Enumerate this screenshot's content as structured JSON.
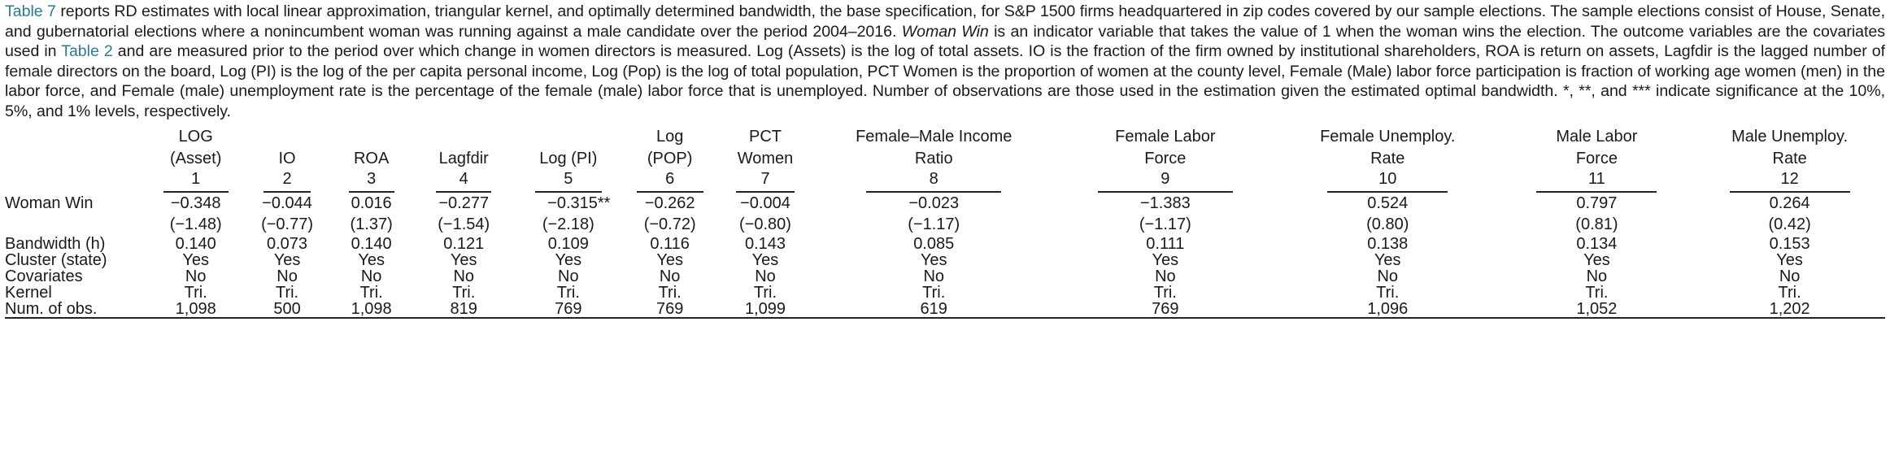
{
  "caption": {
    "link_table7": "Table 7",
    "part1": " reports RD estimates with local linear approximation, triangular kernel, and optimally determined bandwidth, the base specification, for S&P 1500 firms headquartered in zip codes covered by our sample elections. The sample elections consist of House, Senate, and gubernatorial elections where a nonincumbent woman was running against a male candidate over the period 2004–2016. ",
    "italic_var": "Woman Win",
    "part2": " is an indicator variable that takes the value of 1 when the woman wins the election. The outcome variables are the covariates used in ",
    "link_table2": "Table 2",
    "part3": " and are measured prior to the period over which change in women directors is measured. Log (Assets) is the log of total assets. IO is the fraction of the firm owned by institutional shareholders, ROA is return on assets, Lagfdir is the lagged number of female directors on the board, Log (PI) is the log of the per capita personal income, Log (Pop) is the log of total population, PCT Women is the proportion of women at the county level, Female (Male) labor force participation is fraction of working age women (men) in the labor force, and Female (male) unemployment rate is the percentage of the female (male) labor force that is unemployed. Number of observations are those used in the estimation given the estimated optimal bandwidth. *, **, and *** indicate significance at the 10%, 5%, and 1% levels, respectively."
  },
  "table": {
    "columns": [
      {
        "line1": "LOG",
        "line2": "(Asset)",
        "num": "1"
      },
      {
        "line1": "",
        "line2": "IO",
        "num": "2"
      },
      {
        "line1": "",
        "line2": "ROA",
        "num": "3"
      },
      {
        "line1": "",
        "line2": "Lagfdir",
        "num": "4"
      },
      {
        "line1": "",
        "line2": "Log (PI)",
        "num": "5"
      },
      {
        "line1": "Log",
        "line2": "(POP)",
        "num": "6"
      },
      {
        "line1": "PCT",
        "line2": "Women",
        "num": "7"
      },
      {
        "line1": "Female–Male Income",
        "line2": "Ratio",
        "num": "8"
      },
      {
        "line1": "Female Labor",
        "line2": "Force",
        "num": "9"
      },
      {
        "line1": "Female Unemploy.",
        "line2": "Rate",
        "num": "10"
      },
      {
        "line1": "Male Labor",
        "line2": "Force",
        "num": "11"
      },
      {
        "line1": "Male Unemploy.",
        "line2": "Rate",
        "num": "12"
      }
    ],
    "coef_row": {
      "label": "Woman Win",
      "values": [
        "−0.348",
        "−0.044",
        "0.016",
        "−0.277",
        "−0.315**",
        "−0.262",
        "−0.004",
        "−0.023",
        "−1.383",
        "0.524",
        "0.797",
        "0.264"
      ],
      "tstats": [
        "(−1.48)",
        "(−0.77)",
        "(1.37)",
        "(−1.54)",
        "(−2.18)",
        "(−0.72)",
        "(−0.80)",
        "(−1.17)",
        "(−1.17)",
        "(0.80)",
        "(0.81)",
        "(0.42)"
      ]
    },
    "stat_rows": [
      {
        "label": "Bandwidth (h)",
        "values": [
          "0.140",
          "0.073",
          "0.140",
          "0.121",
          "0.109",
          "0.116",
          "0.143",
          "0.085",
          "0.111",
          "0.138",
          "0.134",
          "0.153"
        ]
      },
      {
        "label": "Cluster (state)",
        "values": [
          "Yes",
          "Yes",
          "Yes",
          "Yes",
          "Yes",
          "Yes",
          "Yes",
          "Yes",
          "Yes",
          "Yes",
          "Yes",
          "Yes"
        ]
      },
      {
        "label": "Covariates",
        "values": [
          "No",
          "No",
          "No",
          "No",
          "No",
          "No",
          "No",
          "No",
          "No",
          "No",
          "No",
          "No"
        ]
      },
      {
        "label": "Kernel",
        "values": [
          "Tri.",
          "Tri.",
          "Tri.",
          "Tri.",
          "Tri.",
          "Tri.",
          "Tri.",
          "Tri.",
          "Tri.",
          "Tri.",
          "Tri.",
          "Tri."
        ]
      },
      {
        "label": "Num. of obs.",
        "values": [
          "1,098",
          "500",
          "1,098",
          "819",
          "769",
          "769",
          "1,099",
          "619",
          "769",
          "1,096",
          "1,052",
          "1,202"
        ]
      }
    ]
  }
}
